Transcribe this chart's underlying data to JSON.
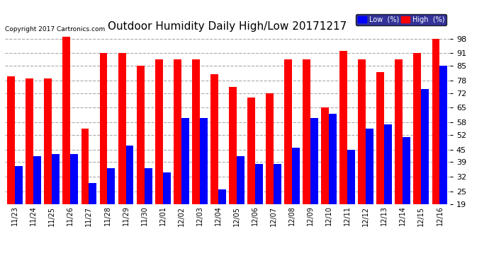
{
  "title": "Outdoor Humidity Daily High/Low 20171217",
  "copyright": "Copyright 2017 Cartronics.com",
  "categories": [
    "11/23",
    "11/24",
    "11/25",
    "11/26",
    "11/27",
    "11/28",
    "11/29",
    "11/30",
    "12/01",
    "12/02",
    "12/03",
    "12/04",
    "12/05",
    "12/06",
    "12/07",
    "12/08",
    "12/09",
    "12/10",
    "12/11",
    "12/12",
    "12/13",
    "12/14",
    "12/15",
    "12/16"
  ],
  "high_values": [
    80,
    79,
    79,
    99,
    55,
    91,
    91,
    85,
    88,
    88,
    88,
    81,
    75,
    70,
    72,
    88,
    88,
    65,
    92,
    88,
    82,
    88,
    91,
    98
  ],
  "low_values": [
    37,
    42,
    43,
    43,
    29,
    36,
    47,
    36,
    34,
    60,
    60,
    26,
    42,
    38,
    38,
    46,
    60,
    62,
    45,
    55,
    57,
    51,
    74,
    85
  ],
  "high_color": "#ff0000",
  "low_color": "#0000ff",
  "bg_color": "#ffffff",
  "yticks": [
    19,
    25,
    32,
    39,
    45,
    52,
    58,
    65,
    72,
    78,
    85,
    91,
    98
  ],
  "ymin": 19,
  "ymax": 100,
  "grid_color": "#aaaaaa",
  "legend_low_label": "Low  (%)",
  "legend_high_label": "High  (%)"
}
